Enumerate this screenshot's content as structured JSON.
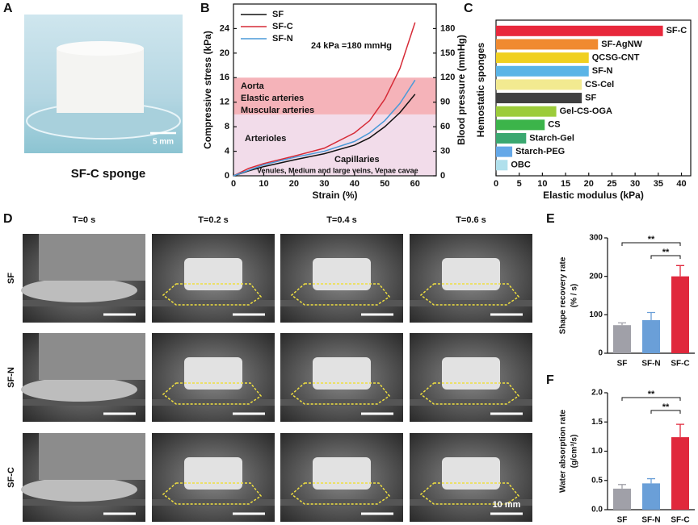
{
  "figure": {
    "panel_letters": [
      "A",
      "B",
      "C",
      "D",
      "E",
      "F"
    ],
    "sponge_photo": {
      "scale_bar": "5 mm",
      "caption": "SF-C sponge"
    },
    "compression_photos": {
      "columns": [
        "T=0 s",
        "T=0.2 s",
        "T=0.4 s",
        "T=0.6 s"
      ],
      "rows": [
        "SF",
        "SF-N",
        "SF-C"
      ],
      "scale_bar": "10 mm"
    }
  },
  "chart_data": [
    {
      "type": "line",
      "x_label": "Strain (%)",
      "y_label": "Compressive stress (kPa)",
      "y2_label": "Blood pressure (mmHg)",
      "x": [
        0,
        5,
        10,
        20,
        30,
        40,
        45,
        50,
        55,
        60
      ],
      "series": [
        {
          "name": "SF",
          "color": "#111111",
          "values": [
            0,
            0.8,
            1.5,
            2.6,
            3.6,
            5.0,
            6.2,
            8.0,
            10.3,
            13.3
          ]
        },
        {
          "name": "SF-C",
          "color": "#d62a36",
          "values": [
            0,
            1.2,
            2.0,
            3.2,
            4.5,
            7.0,
            9.0,
            12.5,
            17.5,
            25
          ]
        },
        {
          "name": "SF-N",
          "color": "#4a9ad8",
          "values": [
            0,
            0.9,
            1.8,
            3.0,
            4.0,
            5.6,
            7.0,
            9.0,
            11.8,
            15.6
          ]
        }
      ],
      "xlim": [
        0,
        67
      ],
      "ylim": [
        0,
        28
      ],
      "y2lim": [
        0,
        210
      ],
      "xticks": [
        0,
        10,
        20,
        30,
        40,
        50,
        60
      ],
      "yticks": [
        0,
        4,
        8,
        12,
        16,
        20,
        24
      ],
      "y2ticks": [
        0,
        30,
        60,
        90,
        120,
        150,
        180
      ],
      "bands": [
        {
          "from": 10,
          "to": 16,
          "color": "#f5b3b9"
        },
        {
          "from": 0,
          "to": 10,
          "color": "#f2dcea"
        }
      ],
      "annotations": [
        "24 kPa =180 mmHg",
        "Aorta",
        "Elastic arteries",
        "Muscular arteries",
        "Arterioles",
        "Capillaries",
        "Venules, Medium and large veins, Venae cavae"
      ]
    },
    {
      "type": "bar",
      "horizontal": true,
      "x_label": "Elastic modulus (kPa)",
      "y_label": "Hemostatic sponges",
      "categories": [
        "SF-C",
        "SF-AgNW",
        "QCSG-CNT",
        "SF-N",
        "CS-Cel",
        "SF",
        "Gel-CS-OGA",
        "CS",
        "Starch-Gel",
        "Starch-PEG",
        "OBC"
      ],
      "values": [
        36,
        22,
        20,
        20,
        18.5,
        18.5,
        13,
        10.5,
        6.5,
        3.5,
        2.5
      ],
      "colors": [
        "#e8283c",
        "#f08a30",
        "#f0d020",
        "#5ab4e6",
        "#f2ea90",
        "#404040",
        "#9ccc3a",
        "#3cb44a",
        "#3aa870",
        "#64a8e8",
        "#b0e0ec"
      ],
      "xlim": [
        0,
        42
      ],
      "xticks": [
        0,
        5,
        10,
        15,
        20,
        25,
        30,
        35,
        40
      ]
    },
    {
      "type": "bar",
      "y_label": [
        "Shape recovery rate",
        "(% / s)"
      ],
      "categories": [
        "SF",
        "SF-N",
        "SF-C"
      ],
      "values": [
        73,
        86,
        200
      ],
      "errors": [
        6,
        20,
        28
      ],
      "colors": [
        "#a0a0a8",
        "#6a9fd8",
        "#e0283c"
      ],
      "ylim": [
        0,
        300
      ],
      "yticks": [
        0,
        100,
        200,
        300
      ],
      "significance": [
        "**",
        "**"
      ]
    },
    {
      "type": "bar",
      "y_label": [
        "Water absorption rate",
        "(g/cm³/s)"
      ],
      "categories": [
        "SF",
        "SF-N",
        "SF-C"
      ],
      "values": [
        0.36,
        0.45,
        1.24
      ],
      "errors": [
        0.07,
        0.08,
        0.22
      ],
      "colors": [
        "#a0a0a8",
        "#6a9fd8",
        "#e0283c"
      ],
      "ylim": [
        0,
        2.0
      ],
      "yticks": [
        {
          "value": 0,
          "label": "0.0"
        },
        {
          "value": 0.5,
          "label": "0.5"
        },
        {
          "value": 1.0,
          "label": "1.0"
        },
        {
          "value": 1.5,
          "label": "1.5"
        },
        {
          "value": 2.0,
          "label": "2.0"
        }
      ],
      "significance": [
        "**",
        "**"
      ]
    }
  ]
}
